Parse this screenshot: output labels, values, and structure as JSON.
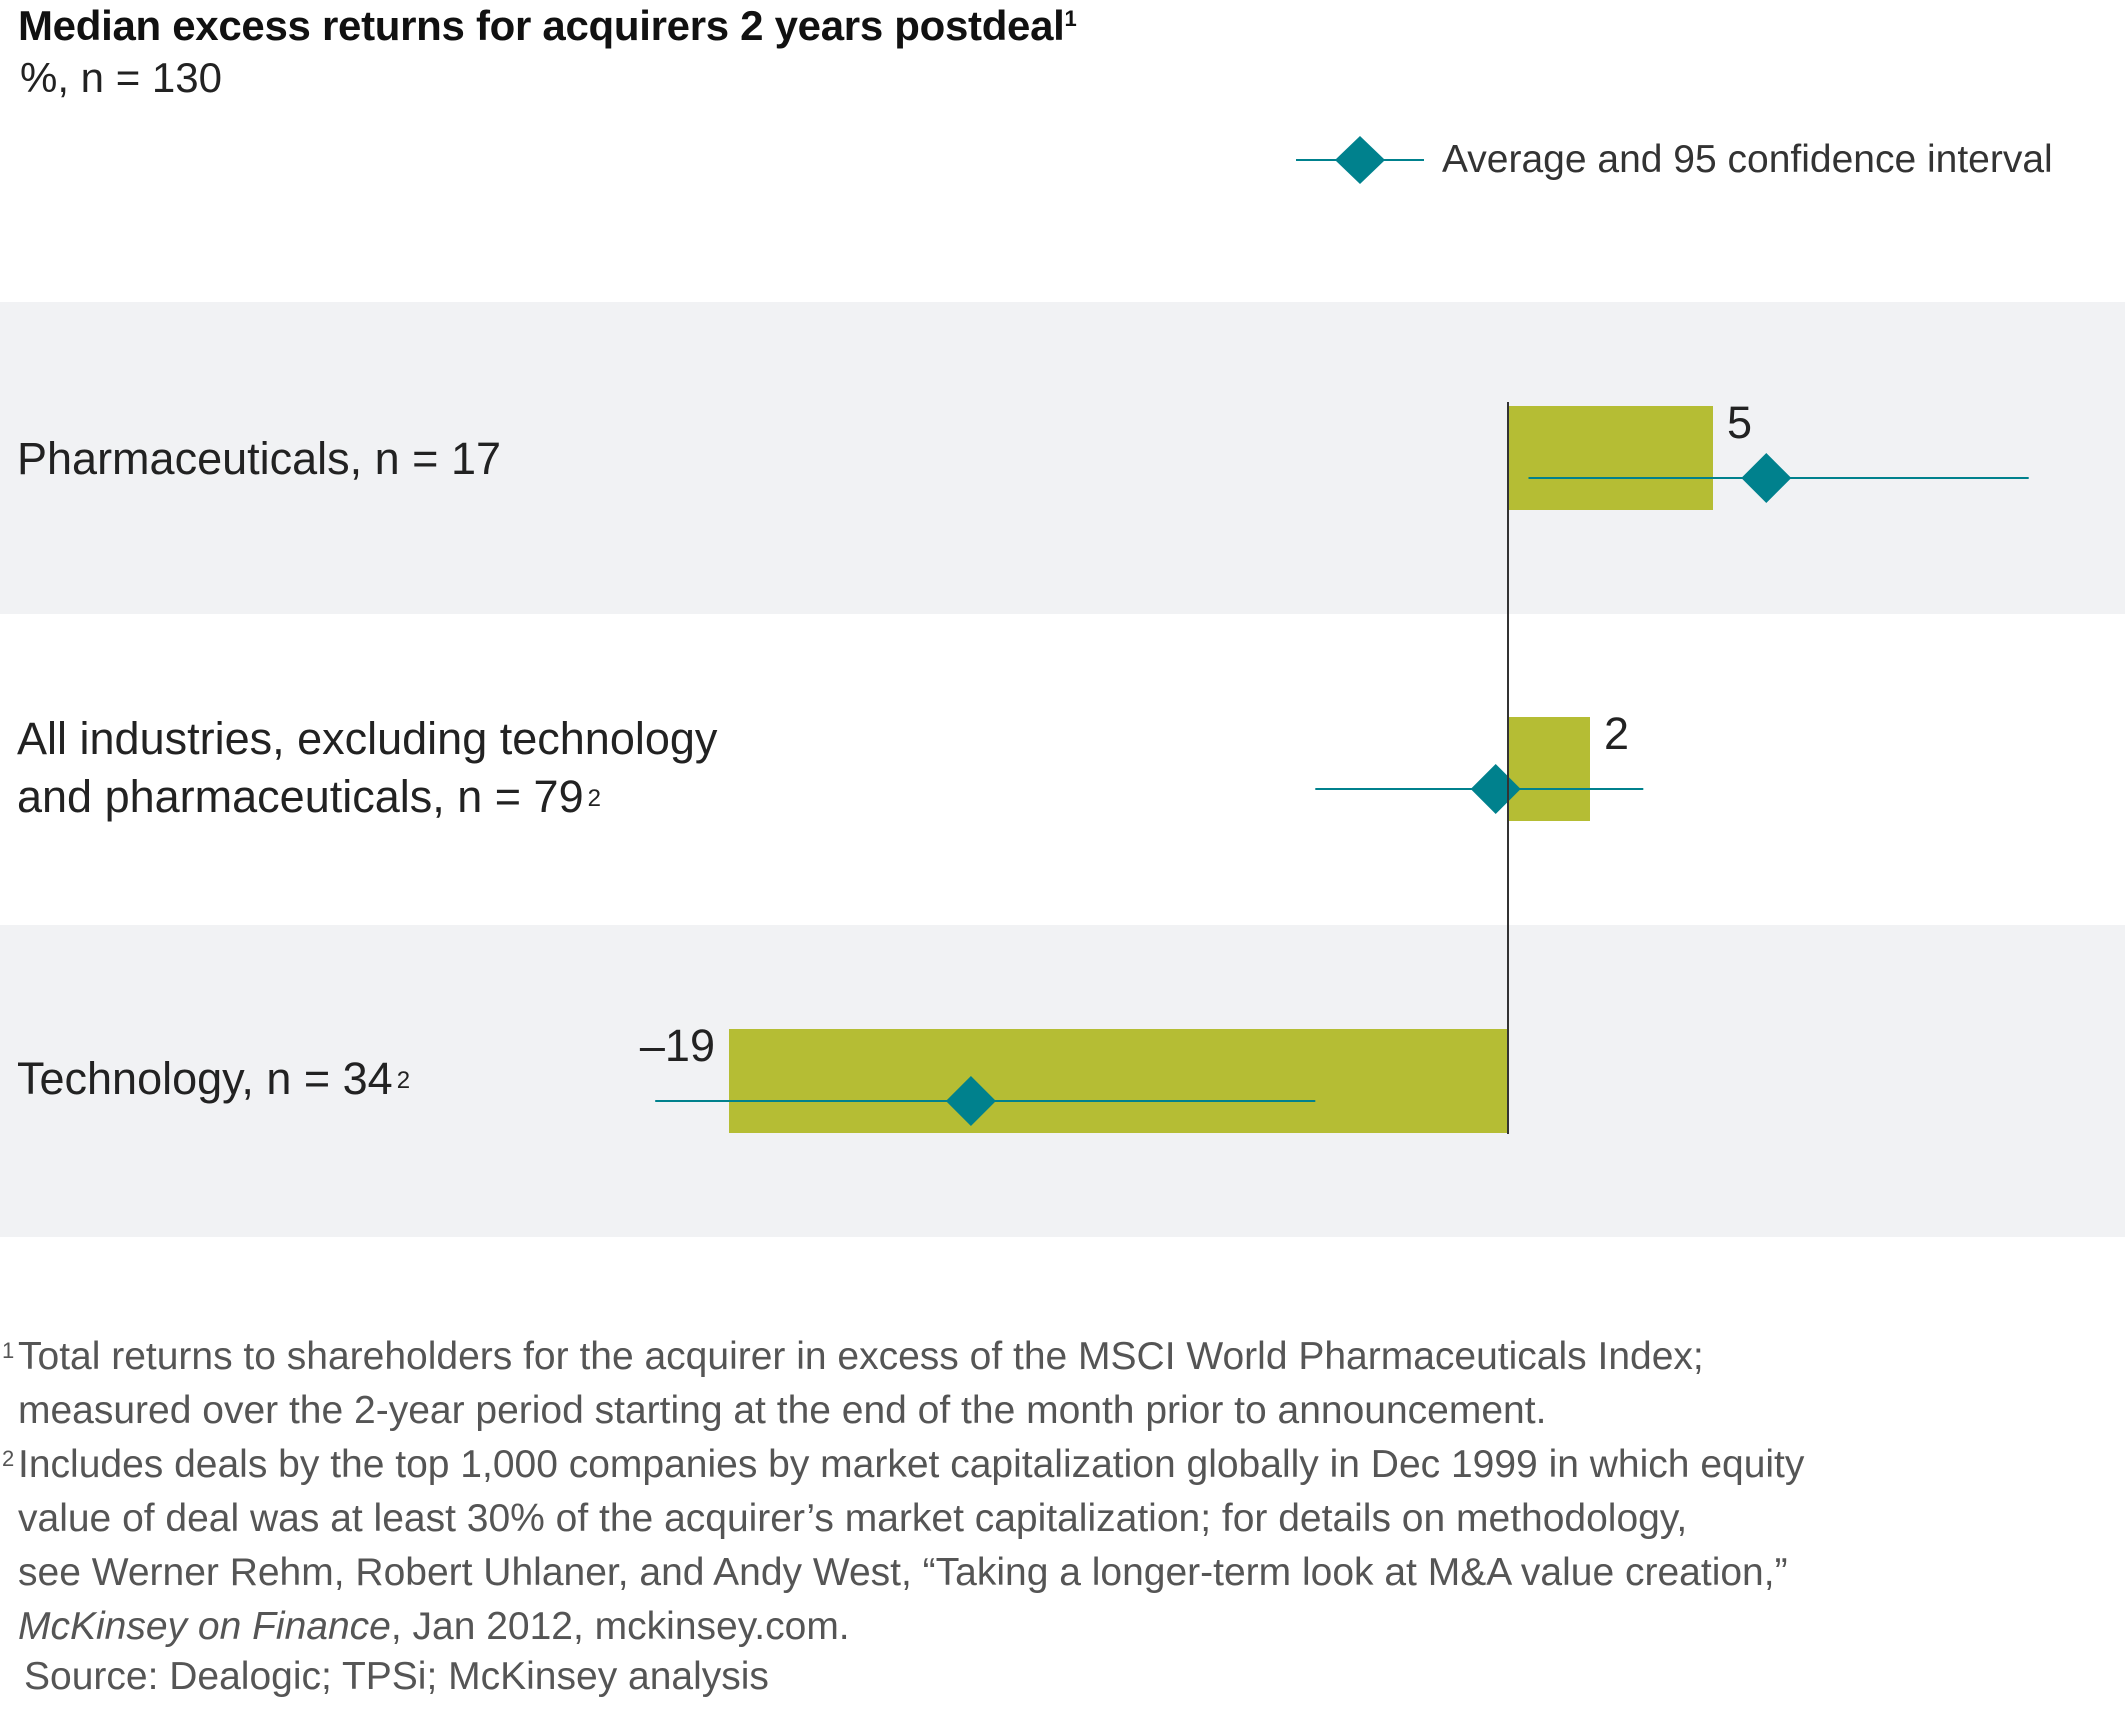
{
  "chart_data": {
    "type": "bar",
    "title": "Median excess returns for acquirers 2 years postdeal",
    "title_footnote": "1",
    "subtitle": "%, n = 130",
    "xlabel": "",
    "ylabel": "",
    "xlim": [
      -21,
      13
    ],
    "grid": false,
    "legend": {
      "position": "top-right",
      "label": "Average and 95 confidence interval"
    },
    "categories": [
      {
        "label": "Pharmaceuticals, n = 17",
        "label_line2": "",
        "footnote": ""
      },
      {
        "label": "All industries, excluding technology",
        "label_line2": "and pharmaceuticals, n = 79",
        "footnote": "2"
      },
      {
        "label": "Technology, n = 34",
        "label_line2": "",
        "footnote": "2"
      }
    ],
    "series": [
      {
        "name": "Median excess return",
        "values": [
          5,
          2,
          -19
        ],
        "value_labels": [
          "5",
          "2",
          "–19"
        ]
      },
      {
        "name": "Average",
        "values": [
          6.3,
          -0.3,
          -13.1
        ]
      },
      {
        "name": "95 confidence interval low",
        "values": [
          0.5,
          -4.7,
          -20.8
        ]
      },
      {
        "name": "95 confidence interval high",
        "values": [
          12.7,
          3.3,
          -4.7
        ]
      }
    ]
  },
  "colors": {
    "bar": "#b5bd34",
    "ci_marker": "#00818d",
    "band_gray": "#f1f2f4",
    "axis": "#333333"
  },
  "footnotes": [
    {
      "num": "1",
      "lines": [
        "Total returns to shareholders for the acquirer in excess of the MSCI World Pharmaceuticals Index;",
        "measured over the 2-year period starting at the end of the month prior to announcement."
      ]
    },
    {
      "num": "2",
      "lines": [
        "Includes deals by the top 1,000 companies by market capitalization globally in Dec 1999 in which equity",
        "value of deal was at least 30% of the acquirer’s market capitalization; for details on methodology,",
        "see Werner Rehm, Robert Uhlaner, and Andy West, “Taking a longer-term look at M&A value creation,”"
      ],
      "last_italic": "McKinsey on Finance",
      "last_rest": ", Jan 2012, mckinsey.com."
    }
  ],
  "source": "Source: Dealogic; TPSi; McKinsey analysis"
}
